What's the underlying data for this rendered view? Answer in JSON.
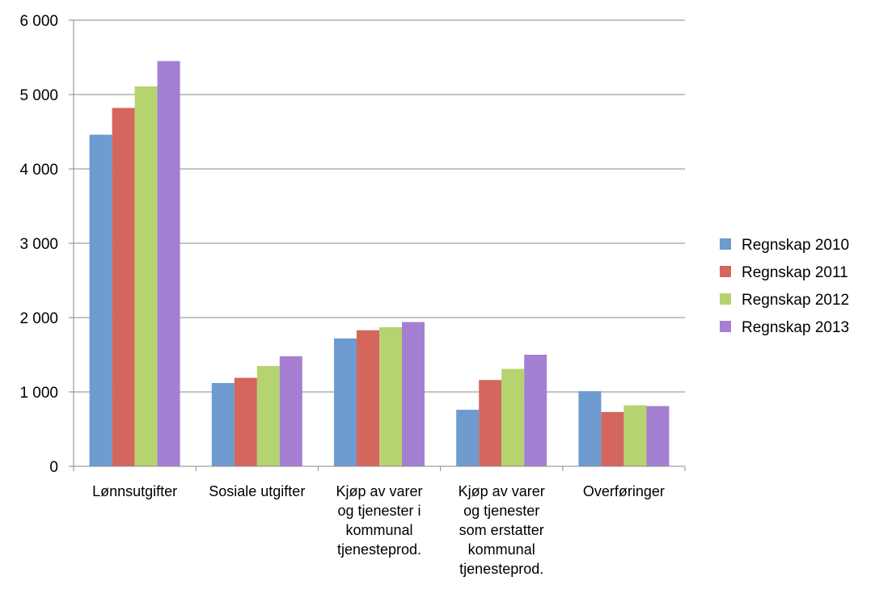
{
  "chart_data": {
    "type": "bar",
    "title": "",
    "xlabel": "",
    "ylabel": "",
    "ylim": [
      0,
      6000
    ],
    "yticks": [
      0,
      1000,
      2000,
      3000,
      4000,
      5000,
      6000
    ],
    "ytick_labels": [
      "0",
      "1 000",
      "2 000",
      "3 000",
      "4 000",
      "5 000",
      "6 000"
    ],
    "grid": true,
    "legend_position": "right",
    "categories": [
      [
        "Lønnsutgifter"
      ],
      [
        "Sosiale utgifter"
      ],
      [
        "Kjøp av varer",
        "og tjenester i",
        "kommunal",
        "tjenesteprod."
      ],
      [
        "Kjøp av varer",
        "og tjenester",
        "som erstatter",
        "kommunal",
        "tjenesteprod."
      ],
      [
        "Overføringer"
      ]
    ],
    "series": [
      {
        "name": "Regnskap 2010",
        "color": "#6e9bd0",
        "values": [
          4460,
          1120,
          1720,
          760,
          1010
        ]
      },
      {
        "name": "Regnskap 2011",
        "color": "#d4665e",
        "values": [
          4820,
          1190,
          1830,
          1160,
          730
        ]
      },
      {
        "name": "Regnskap 2012",
        "color": "#b5d36f",
        "values": [
          5110,
          1350,
          1870,
          1310,
          820
        ]
      },
      {
        "name": "Regnskap 2013",
        "color": "#a47fd2",
        "values": [
          5450,
          1480,
          1940,
          1500,
          810
        ]
      }
    ]
  }
}
